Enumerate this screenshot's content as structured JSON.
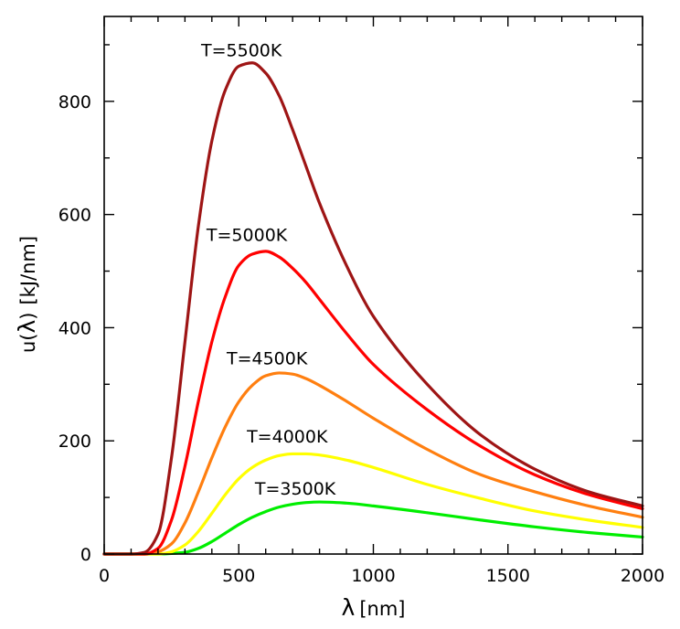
{
  "chart_data": {
    "type": "line",
    "xlabel_symbol": "λ",
    "xlabel_unit": "[nm]",
    "ylabel_prefix": "u(",
    "ylabel_symbol": "λ",
    "ylabel_suffix": ")",
    "ylabel_unit": "[kJ/nm]",
    "xlim": [
      0,
      2000
    ],
    "ylim": [
      0,
      950
    ],
    "x_ticks": [
      0,
      500,
      1000,
      1500,
      2000
    ],
    "x_tick_labels": [
      "0",
      "500",
      "1000",
      "1500",
      "2000"
    ],
    "y_ticks": [
      0,
      200,
      400,
      600,
      800
    ],
    "y_tick_labels": [
      "0",
      "200",
      "400",
      "600",
      "800"
    ],
    "grid": false,
    "x": [
      0,
      100,
      150,
      200,
      250,
      300,
      350,
      400,
      450,
      500,
      550,
      600,
      650,
      700,
      750,
      800,
      900,
      1000,
      1200,
      1400,
      1600,
      1800,
      2000
    ],
    "series": [
      {
        "name": "T=3500K",
        "color": "#00ee00",
        "values": [
          0,
          0,
          0,
          0,
          1,
          3,
          10,
          22,
          37,
          52,
          65,
          75,
          83,
          88,
          91,
          92,
          90,
          85,
          73,
          60,
          48,
          38,
          30
        ]
      },
      {
        "name": "T=4000K",
        "color": "#ffff00",
        "values": [
          0,
          0,
          0,
          0,
          4,
          16,
          40,
          72,
          105,
          133,
          153,
          166,
          174,
          177,
          177,
          175,
          166,
          153,
          123,
          98,
          76,
          60,
          47
        ]
      },
      {
        "name": "T=4500K",
        "color": "#ff7f10",
        "values": [
          0,
          0,
          0,
          4,
          18,
          55,
          110,
          170,
          225,
          269,
          298,
          315,
          320,
          318,
          310,
          298,
          270,
          240,
          185,
          140,
          110,
          85,
          65
        ]
      },
      {
        "name": "T=5000K",
        "color": "#ff0000",
        "values": [
          0,
          0,
          0,
          10,
          60,
          155,
          270,
          375,
          455,
          510,
          530,
          535,
          525,
          505,
          480,
          450,
          390,
          335,
          255,
          190,
          140,
          105,
          80
        ]
      },
      {
        "name": "T=5500K",
        "color": "#9e1515",
        "values": [
          0,
          0,
          3,
          35,
          170,
          375,
          580,
          730,
          820,
          862,
          868,
          850,
          810,
          750,
          685,
          620,
          510,
          420,
          300,
          210,
          150,
          110,
          85
        ]
      }
    ],
    "annotations": [
      {
        "text": "T=5500K",
        "x": 360,
        "y": 880
      },
      {
        "text": "T=5000K",
        "x": 380,
        "y": 553
      },
      {
        "text": "T=4500K",
        "x": 455,
        "y": 335
      },
      {
        "text": "T=4000K",
        "x": 530,
        "y": 197
      },
      {
        "text": "T=3500K",
        "x": 560,
        "y": 105
      }
    ]
  }
}
